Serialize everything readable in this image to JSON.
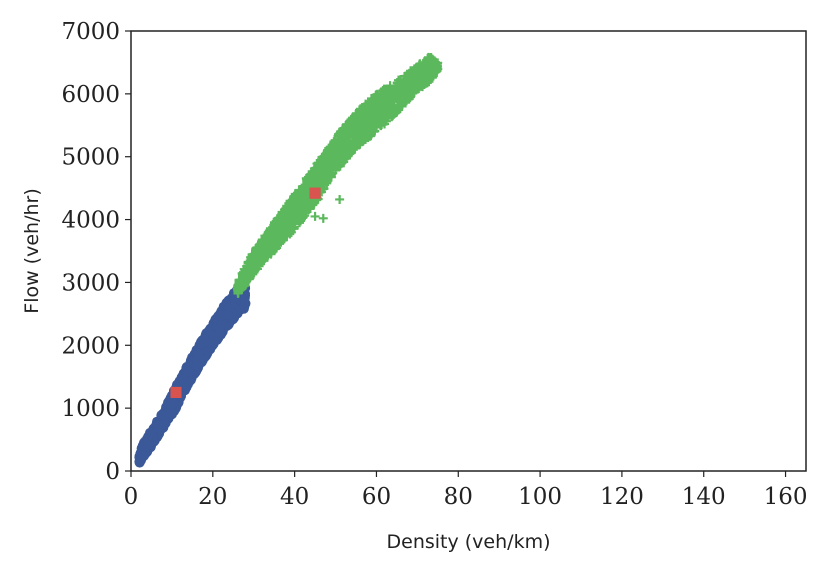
{
  "chart_data": {
    "type": "scatter",
    "title": "",
    "xlabel": "Density (veh/km)",
    "ylabel": "Flow (veh/hr)",
    "xlim": [
      0,
      165
    ],
    "ylim": [
      0,
      7000
    ],
    "xticks": [
      0,
      20,
      40,
      60,
      80,
      100,
      120,
      140,
      160
    ],
    "yticks": [
      0,
      1000,
      2000,
      3000,
      4000,
      5000,
      6000,
      7000
    ],
    "grid": false,
    "legend": "none",
    "series": [
      {
        "marker": "circle",
        "color": "#3b5998",
        "band": {
          "x": [
            2,
            5,
            8,
            11,
            14,
            17,
            20,
            23,
            26,
            28
          ],
          "y_min": [
            120,
            400,
            700,
            1000,
            1380,
            1700,
            2000,
            2250,
            2500,
            2600
          ],
          "y_max": [
            320,
            650,
            950,
            1350,
            1700,
            2050,
            2350,
            2650,
            2900,
            3000
          ]
        }
      },
      {
        "marker": "plus",
        "color": "#5cb85c",
        "band": {
          "x": [
            26,
            30,
            35,
            40,
            45,
            50,
            55,
            60,
            65,
            70,
            73,
            75
          ],
          "y_min": [
            2800,
            3150,
            3500,
            3850,
            4250,
            4750,
            5150,
            5400,
            5700,
            6050,
            6200,
            6380
          ],
          "y_max": [
            3000,
            3500,
            3950,
            4400,
            4850,
            5300,
            5700,
            6000,
            6200,
            6450,
            6600,
            6500
          ]
        }
      },
      {
        "marker": "square",
        "color": "#d9534f",
        "points": [
          {
            "x": 11,
            "y": 1250
          },
          {
            "x": 45,
            "y": 4420
          }
        ]
      }
    ],
    "outliers": [
      {
        "x": 45,
        "y": 4050
      },
      {
        "x": 47,
        "y": 4020
      },
      {
        "x": 51,
        "y": 4320
      }
    ]
  }
}
